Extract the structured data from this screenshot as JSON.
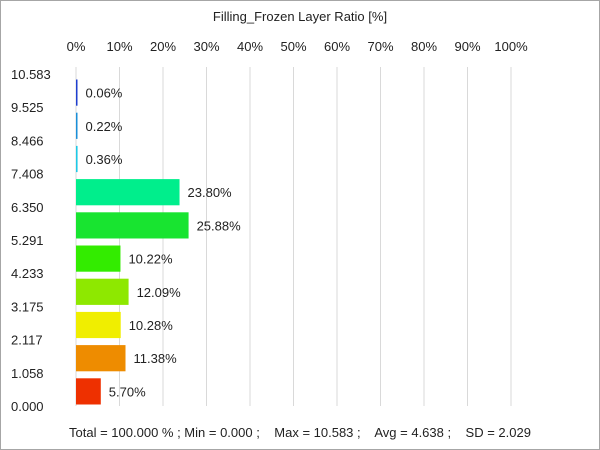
{
  "chart_data": {
    "type": "bar",
    "orientation": "horizontal",
    "title": "Filling_Frozen Layer Ratio [%]",
    "xlim": [
      0,
      100
    ],
    "x_ticks": [
      "0%",
      "10%",
      "20%",
      "30%",
      "40%",
      "50%",
      "60%",
      "70%",
      "80%",
      "90%",
      "100%"
    ],
    "y_ticks": [
      "10.583",
      "9.525",
      "8.466",
      "7.408",
      "6.350",
      "5.291",
      "4.233",
      "3.175",
      "2.117",
      "1.058",
      "0.000"
    ],
    "bins": [
      {
        "label": "0.06%",
        "value": 0.06,
        "color": "#1f3fcf"
      },
      {
        "label": "0.22%",
        "value": 0.22,
        "color": "#1a8fd8"
      },
      {
        "label": "0.36%",
        "value": 0.36,
        "color": "#1ec9e6"
      },
      {
        "label": "23.80%",
        "value": 23.8,
        "color": "#00ee8c"
      },
      {
        "label": "25.88%",
        "value": 25.88,
        "color": "#18e430"
      },
      {
        "label": "10.22%",
        "value": 10.22,
        "color": "#33ec00"
      },
      {
        "label": "12.09%",
        "value": 12.09,
        "color": "#8ee800"
      },
      {
        "label": "10.28%",
        "value": 10.28,
        "color": "#f0ee00"
      },
      {
        "label": "11.38%",
        "value": 11.38,
        "color": "#ee8c00"
      },
      {
        "label": "5.70%",
        "value": 5.7,
        "color": "#ee3000"
      }
    ],
    "grid": true,
    "legend": "none"
  },
  "stats": {
    "text": "Total = 100.000 % ; Min = 0.000 ;    Max = 10.583 ;    Avg = 4.638 ;    SD = 2.029"
  }
}
